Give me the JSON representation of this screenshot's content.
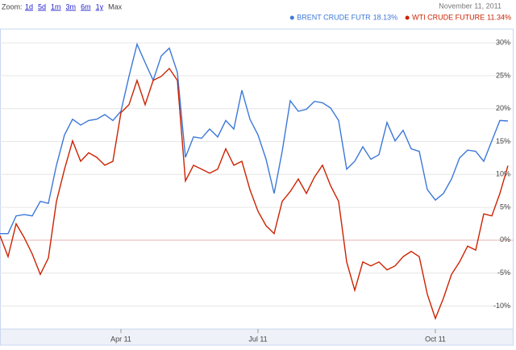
{
  "zoom": {
    "label": "Zoom:",
    "options": [
      "1d",
      "5d",
      "1m",
      "3m",
      "6m",
      "1y"
    ],
    "current": "Max"
  },
  "date": "November 11, 2011",
  "chart_data": {
    "type": "line",
    "categories": [
      null,
      null,
      null,
      null,
      null,
      null,
      null,
      null,
      null,
      null,
      null,
      null,
      null,
      null,
      null,
      "Apr 11",
      null,
      null,
      null,
      null,
      null,
      null,
      null,
      null,
      null,
      null,
      null,
      null,
      null,
      null,
      null,
      null,
      "Jul 11",
      null,
      null,
      null,
      null,
      null,
      null,
      null,
      null,
      null,
      null,
      null,
      null,
      null,
      null,
      null,
      null,
      null,
      null,
      null,
      null,
      null,
      "Oct 11",
      null,
      null,
      null,
      null,
      null,
      null,
      null,
      null,
      null
    ],
    "series": [
      {
        "name": "BRENT CRUDE FUTR",
        "change_label": "18.13%",
        "color": "#3c78d8",
        "values": [
          1.0,
          1.0,
          3.7,
          3.9,
          3.7,
          5.9,
          5.6,
          11.4,
          16.0,
          18.4,
          17.5,
          18.2,
          18.4,
          19.1,
          18.2,
          19.6,
          24.9,
          29.8,
          27.0,
          24.3,
          28.0,
          29.2,
          25.5,
          12.6,
          15.7,
          15.5,
          16.9,
          15.7,
          18.2,
          16.9,
          22.8,
          18.4,
          16.0,
          12.3,
          7.1,
          13.5,
          21.2,
          19.6,
          19.9,
          21.1,
          20.9,
          20.1,
          18.2,
          10.8,
          12.0,
          14.2,
          12.3,
          13.0,
          17.9,
          15.1,
          16.7,
          13.9,
          13.5,
          7.7,
          6.1,
          7.1,
          9.3,
          12.5,
          13.7,
          13.5,
          12.0,
          15.1,
          18.2,
          18.13
        ]
      },
      {
        "name": "WTI CRUDE FUTURE",
        "change_label": "11.34%",
        "color": "#cc2200",
        "values": [
          0.7,
          -2.5,
          2.5,
          0.4,
          -2.1,
          -5.2,
          -2.7,
          5.9,
          10.8,
          15.1,
          12.0,
          13.3,
          12.6,
          11.4,
          12.0,
          19.4,
          20.6,
          24.3,
          20.6,
          24.3,
          24.9,
          26.1,
          24.3,
          9.0,
          11.4,
          10.8,
          10.2,
          10.8,
          13.9,
          11.4,
          12.0,
          7.7,
          4.4,
          2.2,
          1.0,
          5.9,
          7.4,
          9.3,
          7.1,
          9.6,
          11.4,
          8.3,
          5.9,
          -3.3,
          -7.6,
          -3.3,
          -3.9,
          -3.3,
          -4.5,
          -3.9,
          -2.5,
          -1.7,
          -2.5,
          -8.2,
          -11.9,
          -8.8,
          -5.2,
          -3.3,
          -0.9,
          -1.5,
          4.0,
          3.7,
          7.1,
          11.34
        ]
      }
    ],
    "ylim": [
      -13.5,
      32.1
    ],
    "yticks": [
      {
        "value": -10,
        "label": "-10%"
      },
      {
        "value": -5,
        "label": "-5%"
      },
      {
        "value": 0,
        "label": "0%"
      },
      {
        "value": 5,
        "label": "5%"
      },
      {
        "value": 10,
        "label": "10%"
      },
      {
        "value": 15,
        "label": "15%"
      },
      {
        "value": 20,
        "label": "20%"
      },
      {
        "value": 25,
        "label": "25%"
      },
      {
        "value": 30,
        "label": "30%"
      }
    ],
    "grid": true
  }
}
